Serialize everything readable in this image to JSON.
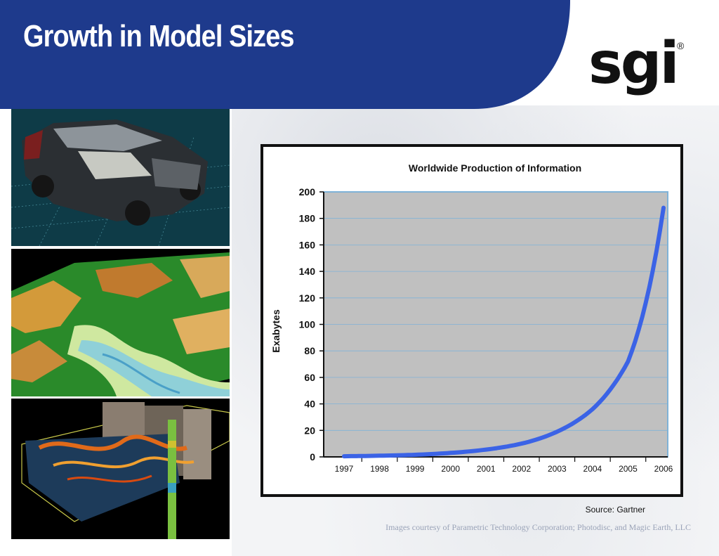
{
  "slide": {
    "title": "Growth in Model Sizes",
    "brand_color": "#1e3a8c"
  },
  "logo": {
    "text": "sgi",
    "mark": "®"
  },
  "photos": [
    {
      "name": "car-cad-model-image",
      "subject": "car-cad-model"
    },
    {
      "name": "terrain-model-image",
      "subject": "terrain-elevation-model"
    },
    {
      "name": "seismic-model-image",
      "subject": "seismic-volume-model"
    }
  ],
  "chart_data": {
    "type": "line",
    "title": "Worldwide Production of Information",
    "ylabel": "Exabytes",
    "xlabel": "",
    "categories": [
      "1997",
      "1998",
      "1999",
      "2000",
      "2001",
      "2002",
      "2003",
      "2004",
      "2005",
      "2006"
    ],
    "series": [
      {
        "values": [
          0.5,
          0.9,
          1.6,
          3,
          5.5,
          10,
          19,
          36,
          72,
          188
        ],
        "color": "#3b63e6"
      }
    ],
    "yticks": [
      0,
      20,
      40,
      60,
      80,
      100,
      120,
      140,
      160,
      180,
      200
    ],
    "ylim": [
      0,
      200
    ],
    "grid": true,
    "plot_background": "#c0c0c0"
  },
  "notes": {
    "source": "Source: Gartner",
    "credit": "Images courtesy of Parametric Technology Corporation; Photodisc, and Magic Earth, LLC"
  }
}
